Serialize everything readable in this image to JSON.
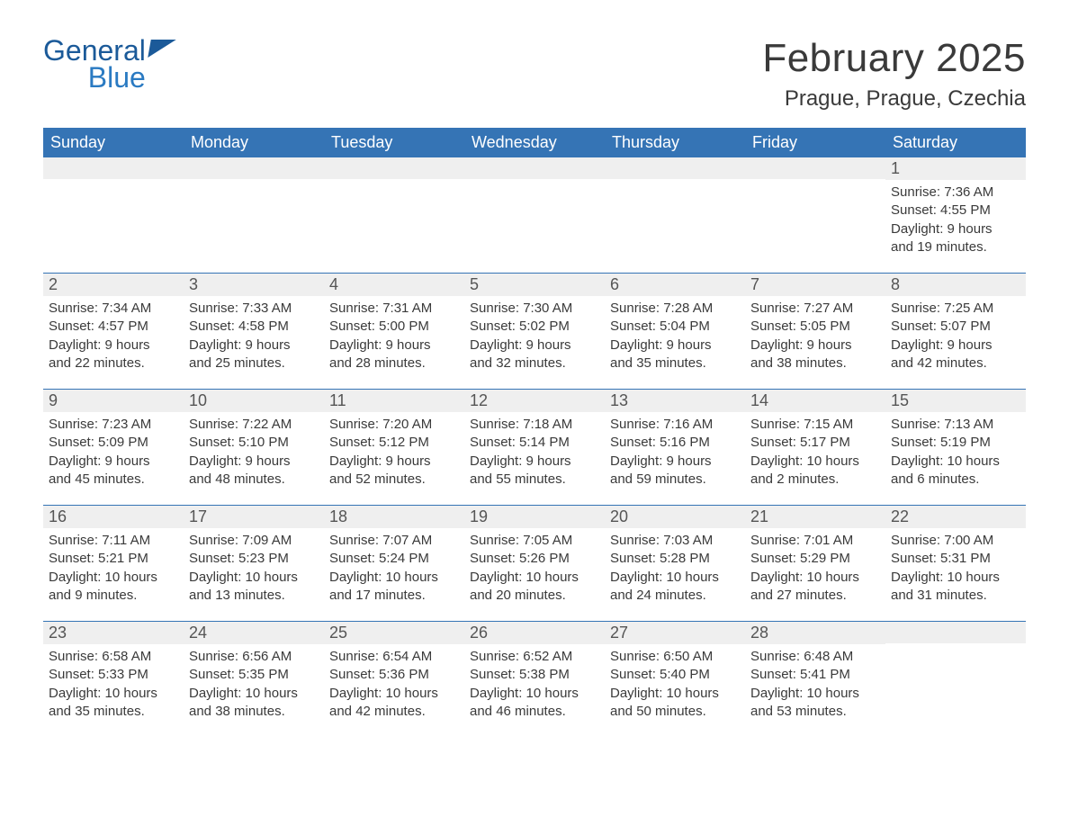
{
  "logo": {
    "general": "General",
    "blue": "Blue"
  },
  "title": "February 2025",
  "location": "Prague, Prague, Czechia",
  "colors": {
    "header_bg": "#3574b5",
    "header_fg": "#ffffff",
    "daynum_bg": "#efefef",
    "rule": "#3574b5",
    "logo_dark": "#1b5a99",
    "logo_light": "#2a7ac2",
    "text": "#3a3a3a",
    "background": "#ffffff"
  },
  "typography": {
    "title_fontsize": 44,
    "location_fontsize": 24,
    "header_fontsize": 18,
    "daynum_fontsize": 18,
    "body_fontsize": 15,
    "family": "Arial Narrow, Arial, sans-serif"
  },
  "day_headers": [
    "Sunday",
    "Monday",
    "Tuesday",
    "Wednesday",
    "Thursday",
    "Friday",
    "Saturday"
  ],
  "weeks": [
    [
      {
        "empty": true
      },
      {
        "empty": true
      },
      {
        "empty": true
      },
      {
        "empty": true
      },
      {
        "empty": true
      },
      {
        "empty": true
      },
      {
        "day": "1",
        "sunrise": "Sunrise: 7:36 AM",
        "sunset": "Sunset: 4:55 PM",
        "dl1": "Daylight: 9 hours",
        "dl2": "and 19 minutes."
      }
    ],
    [
      {
        "day": "2",
        "sunrise": "Sunrise: 7:34 AM",
        "sunset": "Sunset: 4:57 PM",
        "dl1": "Daylight: 9 hours",
        "dl2": "and 22 minutes."
      },
      {
        "day": "3",
        "sunrise": "Sunrise: 7:33 AM",
        "sunset": "Sunset: 4:58 PM",
        "dl1": "Daylight: 9 hours",
        "dl2": "and 25 minutes."
      },
      {
        "day": "4",
        "sunrise": "Sunrise: 7:31 AM",
        "sunset": "Sunset: 5:00 PM",
        "dl1": "Daylight: 9 hours",
        "dl2": "and 28 minutes."
      },
      {
        "day": "5",
        "sunrise": "Sunrise: 7:30 AM",
        "sunset": "Sunset: 5:02 PM",
        "dl1": "Daylight: 9 hours",
        "dl2": "and 32 minutes."
      },
      {
        "day": "6",
        "sunrise": "Sunrise: 7:28 AM",
        "sunset": "Sunset: 5:04 PM",
        "dl1": "Daylight: 9 hours",
        "dl2": "and 35 minutes."
      },
      {
        "day": "7",
        "sunrise": "Sunrise: 7:27 AM",
        "sunset": "Sunset: 5:05 PM",
        "dl1": "Daylight: 9 hours",
        "dl2": "and 38 minutes."
      },
      {
        "day": "8",
        "sunrise": "Sunrise: 7:25 AM",
        "sunset": "Sunset: 5:07 PM",
        "dl1": "Daylight: 9 hours",
        "dl2": "and 42 minutes."
      }
    ],
    [
      {
        "day": "9",
        "sunrise": "Sunrise: 7:23 AM",
        "sunset": "Sunset: 5:09 PM",
        "dl1": "Daylight: 9 hours",
        "dl2": "and 45 minutes."
      },
      {
        "day": "10",
        "sunrise": "Sunrise: 7:22 AM",
        "sunset": "Sunset: 5:10 PM",
        "dl1": "Daylight: 9 hours",
        "dl2": "and 48 minutes."
      },
      {
        "day": "11",
        "sunrise": "Sunrise: 7:20 AM",
        "sunset": "Sunset: 5:12 PM",
        "dl1": "Daylight: 9 hours",
        "dl2": "and 52 minutes."
      },
      {
        "day": "12",
        "sunrise": "Sunrise: 7:18 AM",
        "sunset": "Sunset: 5:14 PM",
        "dl1": "Daylight: 9 hours",
        "dl2": "and 55 minutes."
      },
      {
        "day": "13",
        "sunrise": "Sunrise: 7:16 AM",
        "sunset": "Sunset: 5:16 PM",
        "dl1": "Daylight: 9 hours",
        "dl2": "and 59 minutes."
      },
      {
        "day": "14",
        "sunrise": "Sunrise: 7:15 AM",
        "sunset": "Sunset: 5:17 PM",
        "dl1": "Daylight: 10 hours",
        "dl2": "and 2 minutes."
      },
      {
        "day": "15",
        "sunrise": "Sunrise: 7:13 AM",
        "sunset": "Sunset: 5:19 PM",
        "dl1": "Daylight: 10 hours",
        "dl2": "and 6 minutes."
      }
    ],
    [
      {
        "day": "16",
        "sunrise": "Sunrise: 7:11 AM",
        "sunset": "Sunset: 5:21 PM",
        "dl1": "Daylight: 10 hours",
        "dl2": "and 9 minutes."
      },
      {
        "day": "17",
        "sunrise": "Sunrise: 7:09 AM",
        "sunset": "Sunset: 5:23 PM",
        "dl1": "Daylight: 10 hours",
        "dl2": "and 13 minutes."
      },
      {
        "day": "18",
        "sunrise": "Sunrise: 7:07 AM",
        "sunset": "Sunset: 5:24 PM",
        "dl1": "Daylight: 10 hours",
        "dl2": "and 17 minutes."
      },
      {
        "day": "19",
        "sunrise": "Sunrise: 7:05 AM",
        "sunset": "Sunset: 5:26 PM",
        "dl1": "Daylight: 10 hours",
        "dl2": "and 20 minutes."
      },
      {
        "day": "20",
        "sunrise": "Sunrise: 7:03 AM",
        "sunset": "Sunset: 5:28 PM",
        "dl1": "Daylight: 10 hours",
        "dl2": "and 24 minutes."
      },
      {
        "day": "21",
        "sunrise": "Sunrise: 7:01 AM",
        "sunset": "Sunset: 5:29 PM",
        "dl1": "Daylight: 10 hours",
        "dl2": "and 27 minutes."
      },
      {
        "day": "22",
        "sunrise": "Sunrise: 7:00 AM",
        "sunset": "Sunset: 5:31 PM",
        "dl1": "Daylight: 10 hours",
        "dl2": "and 31 minutes."
      }
    ],
    [
      {
        "day": "23",
        "sunrise": "Sunrise: 6:58 AM",
        "sunset": "Sunset: 5:33 PM",
        "dl1": "Daylight: 10 hours",
        "dl2": "and 35 minutes."
      },
      {
        "day": "24",
        "sunrise": "Sunrise: 6:56 AM",
        "sunset": "Sunset: 5:35 PM",
        "dl1": "Daylight: 10 hours",
        "dl2": "and 38 minutes."
      },
      {
        "day": "25",
        "sunrise": "Sunrise: 6:54 AM",
        "sunset": "Sunset: 5:36 PM",
        "dl1": "Daylight: 10 hours",
        "dl2": "and 42 minutes."
      },
      {
        "day": "26",
        "sunrise": "Sunrise: 6:52 AM",
        "sunset": "Sunset: 5:38 PM",
        "dl1": "Daylight: 10 hours",
        "dl2": "and 46 minutes."
      },
      {
        "day": "27",
        "sunrise": "Sunrise: 6:50 AM",
        "sunset": "Sunset: 5:40 PM",
        "dl1": "Daylight: 10 hours",
        "dl2": "and 50 minutes."
      },
      {
        "day": "28",
        "sunrise": "Sunrise: 6:48 AM",
        "sunset": "Sunset: 5:41 PM",
        "dl1": "Daylight: 10 hours",
        "dl2": "and 53 minutes."
      },
      {
        "empty": true
      }
    ]
  ]
}
